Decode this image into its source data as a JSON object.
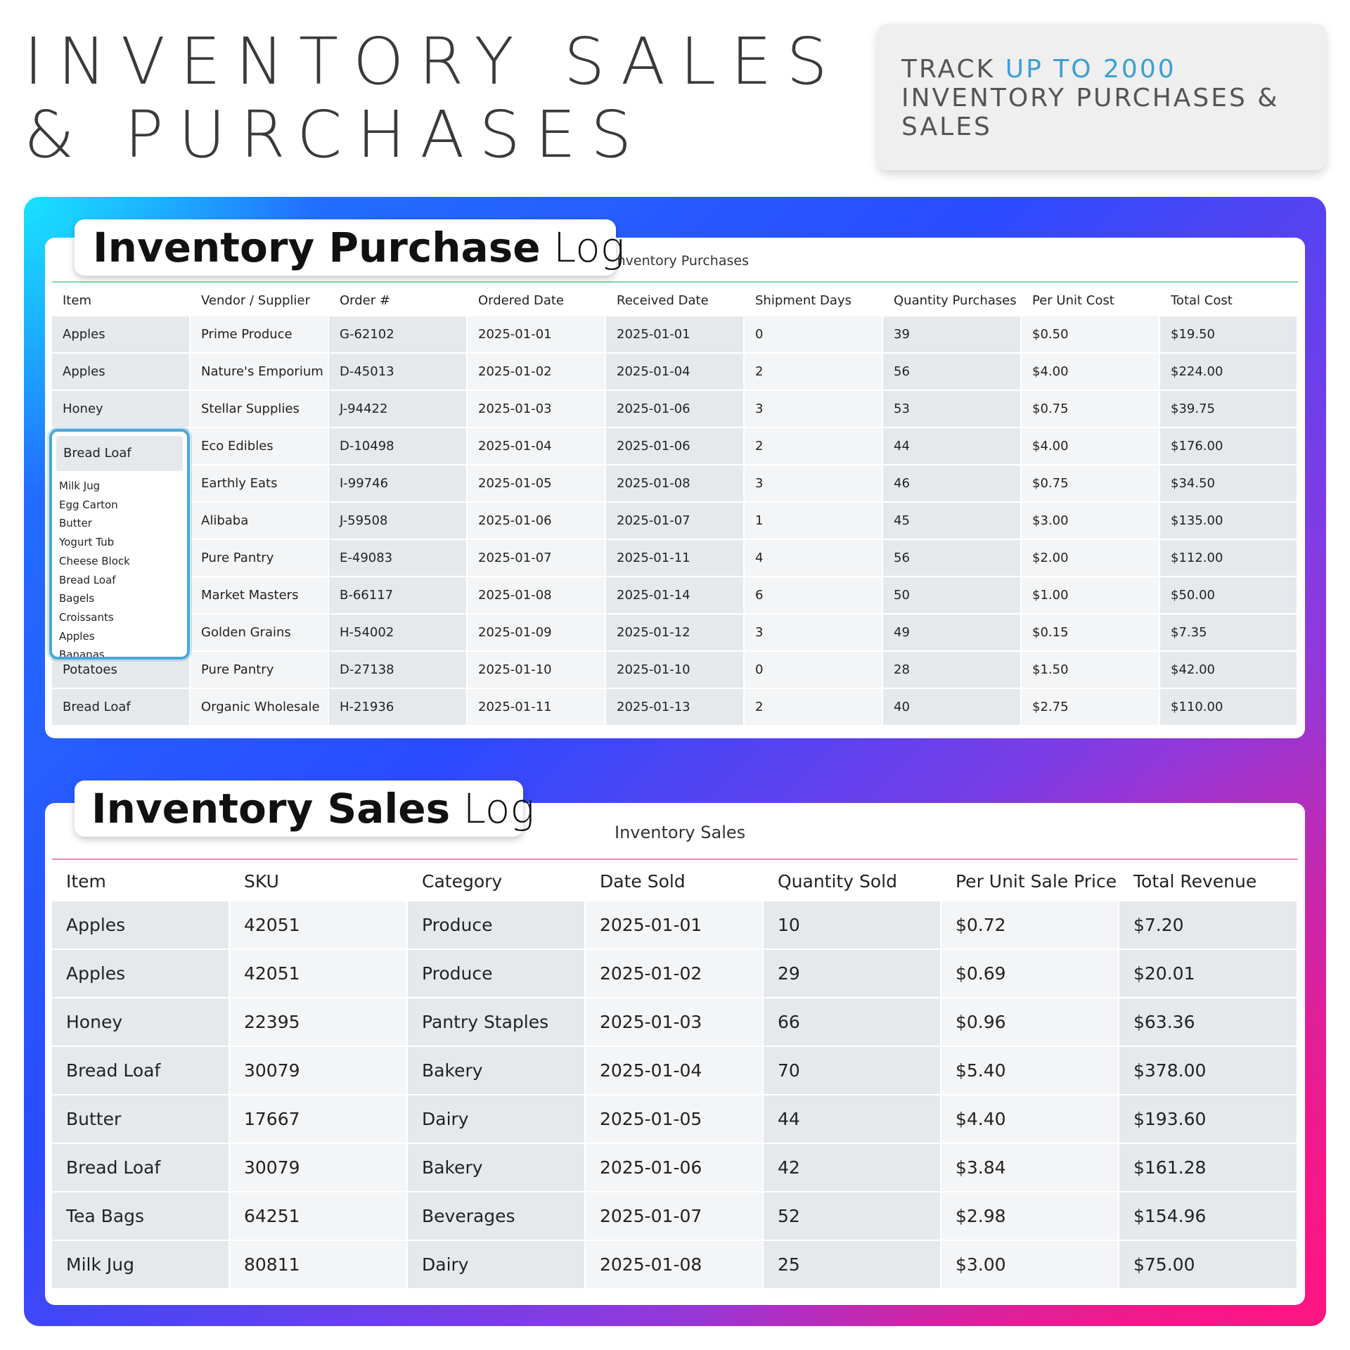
{
  "header": {
    "title_line1": "INVENTORY SALES",
    "title_line2": "& PURCHASES"
  },
  "promo": {
    "prefix": "TRACK ",
    "highlight": "UP TO 2000",
    "suffix": "INVENTORY PURCHASES & SALES",
    "highlight_color": "#3aa0d4"
  },
  "gradient_colors": [
    "#18e8ff",
    "#2a4bff",
    "#8a3ae0",
    "#ff1482"
  ],
  "purchase_log": {
    "label_bold": "Inventory Purchase",
    "label_light": "Log",
    "sheet_title": "Inventory Purchases",
    "columns": [
      "Item",
      "Vendor / Supplier",
      "Order #",
      "Ordered Date",
      "Received Date",
      "Shipment Days",
      "Quantity Purchases",
      "Per Unit Cost",
      "Total Cost"
    ],
    "rows": [
      [
        "Apples",
        "Prime Produce",
        "G-62102",
        "2025-01-01",
        "2025-01-01",
        "0",
        "39",
        "$0.50",
        "$19.50"
      ],
      [
        "Apples",
        "Nature's Emporium",
        "D-45013",
        "2025-01-02",
        "2025-01-04",
        "2",
        "56",
        "$4.00",
        "$224.00"
      ],
      [
        "Honey",
        "Stellar Supplies",
        "J-94422",
        "2025-01-03",
        "2025-01-06",
        "3",
        "53",
        "$0.75",
        "$39.75"
      ],
      [
        "Bread Loaf",
        "Eco Edibles",
        "D-10498",
        "2025-01-04",
        "2025-01-06",
        "2",
        "44",
        "$4.00",
        "$176.00"
      ],
      [
        "",
        "Earthly Eats",
        "I-99746",
        "2025-01-05",
        "2025-01-08",
        "3",
        "46",
        "$0.75",
        "$34.50"
      ],
      [
        "",
        "Alibaba",
        "J-59508",
        "2025-01-06",
        "2025-01-07",
        "1",
        "45",
        "$3.00",
        "$135.00"
      ],
      [
        "",
        "Pure Pantry",
        "E-49083",
        "2025-01-07",
        "2025-01-11",
        "4",
        "56",
        "$2.00",
        "$112.00"
      ],
      [
        "",
        "Market Masters",
        "B-66117",
        "2025-01-08",
        "2025-01-14",
        "6",
        "50",
        "$1.00",
        "$50.00"
      ],
      [
        "",
        "Golden Grains",
        "H-54002",
        "2025-01-09",
        "2025-01-12",
        "3",
        "49",
        "$0.15",
        "$7.35"
      ],
      [
        "Potatoes",
        "Pure Pantry",
        "D-27138",
        "2025-01-10",
        "2025-01-10",
        "0",
        "28",
        "$1.50",
        "$42.00"
      ],
      [
        "Bread Loaf",
        "Organic Wholesale",
        "H-21936",
        "2025-01-11",
        "2025-01-13",
        "2",
        "40",
        "$2.75",
        "$110.00"
      ]
    ],
    "item_dropdown": {
      "selected": "Bread Loaf",
      "options": [
        "Milk Jug",
        "Egg Carton",
        "Butter",
        "Yogurt Tub",
        "Cheese Block",
        "Bread Loaf",
        "Bagels",
        "Croissants",
        "Apples",
        "Bananas"
      ],
      "accent_color": "#4aa8d8"
    }
  },
  "sales_log": {
    "label_bold": "Inventory Sales",
    "label_light": "Log",
    "sheet_title": "Inventory Sales",
    "columns": [
      "Item",
      "SKU",
      "Category",
      "Date Sold",
      "Quantity Sold",
      "Per Unit Sale Price",
      "Total Revenue"
    ],
    "rows": [
      [
        "Apples",
        "42051",
        "Produce",
        "2025-01-01",
        "10",
        "$0.72",
        "$7.20"
      ],
      [
        "Apples",
        "42051",
        "Produce",
        "2025-01-02",
        "29",
        "$0.69",
        "$20.01"
      ],
      [
        "Honey",
        "22395",
        "Pantry Staples",
        "2025-01-03",
        "66",
        "$0.96",
        "$63.36"
      ],
      [
        "Bread Loaf",
        "30079",
        "Bakery",
        "2025-01-04",
        "70",
        "$5.40",
        "$378.00"
      ],
      [
        "Butter",
        "17667",
        "Dairy",
        "2025-01-05",
        "44",
        "$4.40",
        "$193.60"
      ],
      [
        "Bread Loaf",
        "30079",
        "Bakery",
        "2025-01-06",
        "42",
        "$3.84",
        "$161.28"
      ],
      [
        "Tea Bags",
        "64251",
        "Beverages",
        "2025-01-07",
        "52",
        "$2.98",
        "$154.96"
      ],
      [
        "Milk Jug",
        "80811",
        "Dairy",
        "2025-01-08",
        "25",
        "$3.00",
        "$75.00"
      ]
    ]
  }
}
